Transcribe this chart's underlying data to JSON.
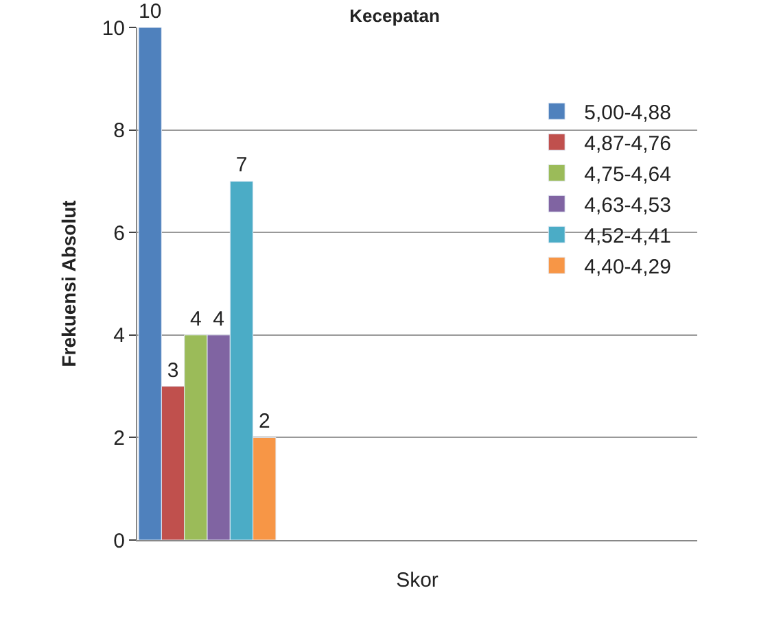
{
  "chart_data": {
    "type": "bar",
    "title": "Kecepatan",
    "xlabel": "Skor",
    "ylabel": "Frekuensi Absolut",
    "categories": [
      null,
      null,
      null,
      null
    ],
    "series": [
      {
        "name": "5,00-4,88",
        "color": "#4f81bd",
        "values": [
          10,
          null,
          null,
          null
        ]
      },
      {
        "name": "4,87-4,76",
        "color": "#c0504d",
        "values": [
          3,
          null,
          null,
          null
        ]
      },
      {
        "name": "4,75-4,64",
        "color": "#9bbb59",
        "values": [
          4,
          null,
          null,
          null
        ]
      },
      {
        "name": "4,63-4,53",
        "color": "#8064a2",
        "values": [
          4,
          null,
          null,
          null
        ]
      },
      {
        "name": "4,52-4,41",
        "color": "#4bacc6",
        "values": [
          7,
          null,
          null,
          null
        ]
      },
      {
        "name": "4,40-4,29",
        "color": "#f79646",
        "values": [
          2,
          null,
          null,
          null
        ]
      }
    ],
    "ylim": [
      0,
      10
    ],
    "yticks": [
      0,
      2,
      4,
      6,
      8,
      10
    ],
    "grid": "y",
    "legend": "right",
    "data_labels": true
  }
}
